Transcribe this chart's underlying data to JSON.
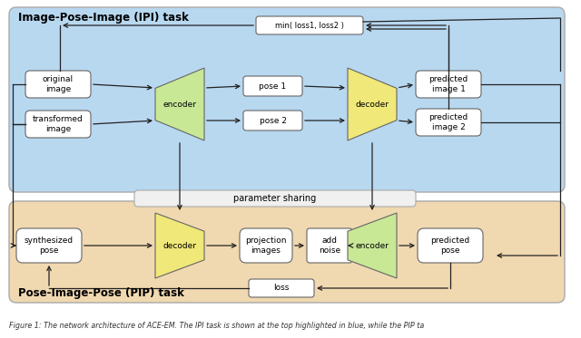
{
  "fig_width": 6.4,
  "fig_height": 3.73,
  "dpi": 100,
  "bg_color": "#ffffff",
  "ipi_bg": "#b8d8f0",
  "pip_bg": "#f0d8b0",
  "ipi_label": "Image-Pose-Image (IPI) task",
  "pip_label": "Pose-Image-Pose (PIP) task",
  "caption": "Figure 1: The network architecture of ACE-EM. The IPI task is shown at the top highlighted in blue, while the PIP ta",
  "green_color": "#c8e896",
  "yellow_color": "#f0e878",
  "box_edge": "#666666",
  "arrow_color": "#222222",
  "param_share_box_color": "#e8e8e8"
}
